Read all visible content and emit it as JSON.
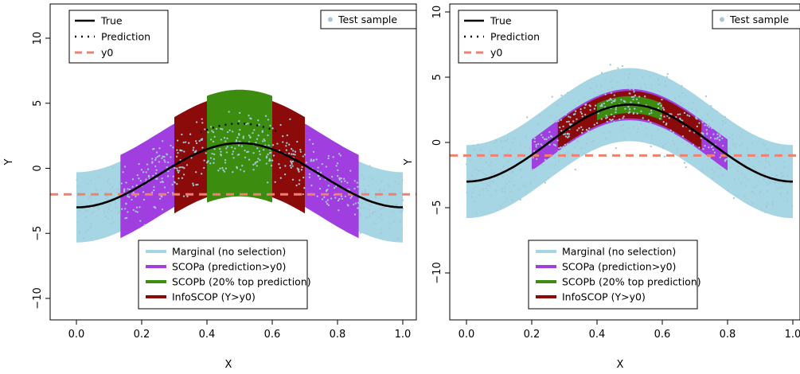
{
  "chart_data": [
    {
      "type": "scatter",
      "title": "",
      "xlabel": "X",
      "ylabel": "Y",
      "xlim": [
        0.0,
        1.0
      ],
      "ylim": [
        -10,
        10
      ],
      "xticks": [
        "0.0",
        "0.2",
        "0.4",
        "0.6",
        "0.8",
        "1.0"
      ],
      "yticks": [
        "−10",
        "−5",
        "0",
        "5",
        "10"
      ],
      "y0": -2.0,
      "true_curve": {
        "x": [
          0.0,
          0.1,
          0.2,
          0.3,
          0.4,
          0.5,
          0.6,
          0.7,
          0.8,
          0.9,
          1.0
        ],
        "y": [
          -3.0,
          -2.69,
          -1.85,
          -0.69,
          0.6,
          1.94,
          0.6,
          -0.69,
          -1.85,
          -2.69,
          -3.0
        ]
      },
      "prediction_curve": {
        "x": [
          0.4,
          0.45,
          0.5,
          0.55,
          0.6
        ],
        "y": [
          3.8,
          4.1,
          4.3,
          4.1,
          3.8
        ]
      },
      "bands": [
        {
          "name": "Marginal (no selection)",
          "x_range": [
            0.0,
            1.0
          ],
          "halfwidth": 2.7
        },
        {
          "name": "SCOPa (prediction>y0)",
          "x_range": [
            0.135,
            0.865
          ],
          "halfwidth": 3.2
        },
        {
          "name": "InfoSCOP (Y>y0)",
          "x_range": [
            0.3,
            0.7
          ],
          "halfwidth": 3.7
        },
        {
          "name": "SCOPb (20% top prediction)",
          "x_range": [
            0.4,
            0.6
          ],
          "halfwidth": 4.1
        }
      ],
      "legend_top": [
        "True",
        "Prediction",
        "y0"
      ],
      "legend_right": [
        "Test sample"
      ],
      "legend_bottom": [
        "Marginal (no selection)",
        "SCOPa (prediction>y0)",
        "SCOPb (20% top prediction)",
        "InfoSCOP (Y>y0)"
      ]
    },
    {
      "type": "scatter",
      "title": "",
      "xlabel": "X",
      "ylabel": "Y",
      "xlim": [
        0.0,
        1.0
      ],
      "ylim": [
        -10,
        10
      ],
      "xticks": [
        "0.0",
        "0.2",
        "0.4",
        "0.6",
        "0.8",
        "1.0"
      ],
      "yticks": [
        "−10",
        "−5",
        "0",
        "5",
        "10"
      ],
      "y0": -1.0,
      "true_curve": {
        "x": [
          0.0,
          0.1,
          0.2,
          0.3,
          0.4,
          0.5,
          0.6,
          0.7,
          0.8,
          0.9,
          1.0
        ],
        "y": [
          -3.0,
          -2.71,
          -1.87,
          -0.6,
          1.63,
          2.9,
          1.63,
          -0.6,
          -1.87,
          -2.71,
          -3.0
        ]
      },
      "bands": [
        {
          "name": "Marginal (no selection)",
          "x_range": [
            0.0,
            1.0
          ],
          "halfwidth": 2.8
        },
        {
          "name": "SCOPa (prediction>y0)",
          "x_range": [
            0.2,
            0.8
          ],
          "halfwidth": 1.2
        },
        {
          "name": "InfoSCOP (Y>y0)",
          "x_range": [
            0.28,
            0.72
          ],
          "halfwidth": 1.05
        },
        {
          "name": "SCOPb (20% top prediction)",
          "x_range": [
            0.4,
            0.6
          ],
          "halfwidth": 0.65
        }
      ],
      "legend_top": [
        "True",
        "Prediction",
        "y0"
      ],
      "legend_right": [
        "Test sample"
      ],
      "legend_bottom": [
        "Marginal (no selection)",
        "SCOPa (prediction>y0)",
        "SCOPb (20% top prediction)",
        "InfoSCOP (Y>y0)"
      ]
    }
  ],
  "colors": {
    "marginal": "#a6d6e4",
    "scopa": "#a03ee0",
    "scopb": "#3b8c0f",
    "infoscop": "#8b0a0a",
    "true": "#000000",
    "y0": "#f08070",
    "test_sample": "#a6c8d8"
  }
}
